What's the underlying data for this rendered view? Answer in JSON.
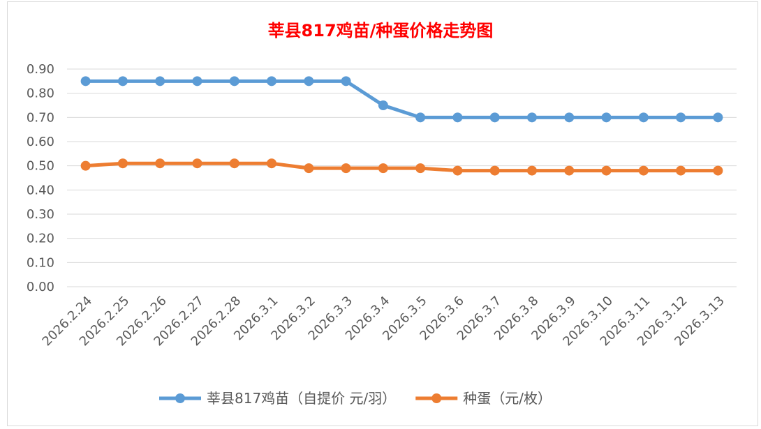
{
  "chart_data": {
    "type": "line",
    "title": "莘县817鸡苗/种蛋价格走势图",
    "xlabel": "",
    "ylabel": "",
    "ylim": [
      0,
      0.9
    ],
    "yticks": [
      "0.00",
      "0.10",
      "0.20",
      "0.30",
      "0.40",
      "0.50",
      "0.60",
      "0.70",
      "0.80",
      "0.90"
    ],
    "grid": true,
    "legend_position": "bottom",
    "categories": [
      "2026.2.24",
      "2026.2.25",
      "2026.2.26",
      "2026.2.27",
      "2026.2.28",
      "2026.3.1",
      "2026.3.2",
      "2026.3.3",
      "2026.3.4",
      "2026.3.5",
      "2026.3.6",
      "2026.3.7",
      "2026.3.8",
      "2026.3.9",
      "2026.3.10",
      "2026.3.11",
      "2026.3.12",
      "2026.3.13"
    ],
    "series": [
      {
        "name": "莘县817鸡苗（自提价 元/羽）",
        "color": "#5b9bd5",
        "values": [
          0.85,
          0.85,
          0.85,
          0.85,
          0.85,
          0.85,
          0.85,
          0.85,
          0.75,
          0.7,
          0.7,
          0.7,
          0.7,
          0.7,
          0.7,
          0.7,
          0.7,
          0.7
        ]
      },
      {
        "name": "种蛋（元/枚）",
        "color": "#ed7d31",
        "values": [
          0.5,
          0.51,
          0.51,
          0.51,
          0.51,
          0.51,
          0.49,
          0.49,
          0.49,
          0.49,
          0.48,
          0.48,
          0.48,
          0.48,
          0.48,
          0.48,
          0.48,
          0.48
        ]
      }
    ]
  }
}
